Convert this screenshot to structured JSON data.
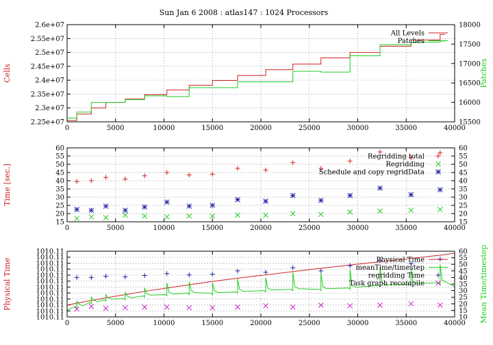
{
  "page": {
    "title": "Sun Jan 6 2008 : atlas147 : 1024 Processors",
    "colors": {
      "red": "#cc2020",
      "green": "#22cc22",
      "blue": "#2222aa",
      "magenta": "#cc22cc",
      "grid": "#a8a8a8",
      "frame": "#000000"
    }
  },
  "chart_data": [
    {
      "id": "cells-patches",
      "type": "line",
      "xlim": [
        0,
        40000
      ],
      "x_ticks": [
        0,
        5000,
        10000,
        15000,
        20000,
        25000,
        30000,
        35000,
        40000
      ],
      "ylabel": "Cells",
      "ylabel_color": "red",
      "ylim": [
        22500000,
        26000000
      ],
      "y_ticks": [
        22500000,
        23000000,
        23500000,
        24000000,
        24500000,
        25000000,
        25500000,
        26000000
      ],
      "y_tick_labels": [
        "2.25e+07",
        "2.3e+07",
        "2.35e+07",
        "2.4e+07",
        "2.45e+07",
        "2.5e+07",
        "2.55e+07",
        "2.6e+07"
      ],
      "y2label": "Patches",
      "y2label_color": "green",
      "y2lim": [
        15500,
        18000
      ],
      "y2_ticks": [
        15500,
        16000,
        16500,
        17000,
        17500,
        18000
      ],
      "legend_position": "top-right",
      "series": [
        {
          "name": "All Levels",
          "axis": "y",
          "color": "red",
          "style": "step",
          "x": [
            0,
            1000,
            2500,
            4000,
            6000,
            8000,
            10300,
            12600,
            15000,
            17600,
            20500,
            23300,
            26200,
            29200,
            32300,
            35500,
            38500
          ],
          "y": [
            22550000,
            22780000,
            23000000,
            23200000,
            23320000,
            23480000,
            23650000,
            23820000,
            23990000,
            24170000,
            24380000,
            24580000,
            24800000,
            25000000,
            25220000,
            25450000,
            25650000
          ]
        },
        {
          "name": "Patches",
          "axis": "y2",
          "color": "green",
          "style": "step",
          "x": [
            0,
            1000,
            2500,
            4000,
            6000,
            8000,
            10300,
            12600,
            15000,
            17600,
            20500,
            23300,
            26200,
            29200,
            32300,
            35500,
            38500
          ],
          "y": [
            15600,
            15750,
            16000,
            16000,
            16070,
            16170,
            16150,
            16380,
            16380,
            16530,
            16530,
            16800,
            16780,
            17200,
            17480,
            17550,
            17580
          ]
        }
      ]
    },
    {
      "id": "regridding-time",
      "type": "scatter",
      "xlim": [
        0,
        40000
      ],
      "x_ticks": [
        0,
        5000,
        10000,
        15000,
        20000,
        25000,
        30000,
        35000,
        40000
      ],
      "ylabel": "Time [sec.]",
      "ylabel_color": "red",
      "ylim": [
        15,
        60
      ],
      "y_ticks": [
        15,
        20,
        25,
        30,
        35,
        40,
        45,
        50,
        55,
        60
      ],
      "y2lim": [
        15,
        60
      ],
      "y2_ticks": [
        15,
        20,
        25,
        30,
        35,
        40,
        45,
        50,
        55,
        60
      ],
      "legend_position": "top-right",
      "series": [
        {
          "name": "Regridding total",
          "color": "red",
          "marker": "plus",
          "x": [
            1000,
            2500,
            4000,
            6000,
            8000,
            10300,
            12600,
            15000,
            17600,
            20500,
            23300,
            26200,
            29200,
            32300,
            35500,
            38500
          ],
          "y": [
            39.5,
            40,
            42,
            41,
            43,
            45,
            43.5,
            44,
            47.5,
            46.5,
            51,
            47.5,
            52,
            57.5,
            54,
            57
          ]
        },
        {
          "name": "Regridding",
          "color": "green",
          "marker": "cross",
          "x": [
            1000,
            2500,
            4000,
            6000,
            8000,
            10300,
            12600,
            15000,
            17600,
            20500,
            23300,
            26200,
            29200,
            32300,
            35500,
            38500
          ],
          "y": [
            17,
            18,
            17.5,
            19,
            18.5,
            18,
            18.5,
            18.5,
            19,
            19,
            20,
            19.5,
            21,
            21.5,
            22,
            22.5
          ]
        },
        {
          "name": "Schedule and copy regridData",
          "color": "blue",
          "marker": "star",
          "x": [
            1000,
            2500,
            4000,
            6000,
            8000,
            10300,
            12600,
            15000,
            17600,
            20500,
            23300,
            26200,
            29200,
            32300,
            35500,
            38500
          ],
          "y": [
            22.5,
            22,
            24.5,
            22,
            24,
            27,
            24.5,
            25,
            28.5,
            27.5,
            31,
            28,
            31,
            35.5,
            31.5,
            34.5
          ]
        }
      ]
    },
    {
      "id": "physical-time",
      "type": "line",
      "xlim": [
        0,
        40000
      ],
      "x_ticks": [
        0,
        5000,
        10000,
        15000,
        20000,
        25000,
        30000,
        35000,
        40000
      ],
      "ylabel": "Physical Time",
      "ylabel_color": "red",
      "y_tick_labels": [
        "1010.11",
        "1010.11",
        "1010.11",
        "1010.11",
        "1010.11",
        "1010.11",
        "1010.11",
        "1010.11",
        "1010.11",
        "1010.11",
        "1010.11",
        "1010.11"
      ],
      "y2label": "Mean Time/timestep",
      "y2label_color": "green",
      "y2lim": [
        10,
        60
      ],
      "y2_ticks": [
        10,
        15,
        20,
        25,
        30,
        35,
        40,
        45,
        50,
        55,
        60
      ],
      "legend_position": "top-right",
      "series": [
        {
          "name": "Physical Time",
          "axis": "y",
          "color": "red",
          "style": "line",
          "x": [
            0,
            1000,
            2500,
            4000,
            6000,
            8000,
            10300,
            12600,
            15000,
            17600,
            20500,
            23300,
            26200,
            29200,
            32300,
            35500,
            38500,
            40000
          ],
          "y": [
            19,
            20.5,
            22.5,
            24.5,
            27,
            29.5,
            32,
            34.5,
            37,
            39.5,
            42,
            44.5,
            47,
            49.5,
            52,
            54.5,
            57,
            58.5
          ]
        },
        {
          "name": "meanTime/timestep",
          "axis": "y2",
          "color": "green",
          "style": "line",
          "base": [
            [
              0,
              15
            ],
            [
              1000,
              17
            ],
            [
              2500,
              20
            ],
            [
              4000,
              22
            ],
            [
              6000,
              23
            ],
            [
              8000,
              25
            ],
            [
              10300,
              26
            ],
            [
              12600,
              27
            ],
            [
              15000,
              27
            ],
            [
              17600,
              28
            ],
            [
              20500,
              29
            ],
            [
              23300,
              30
            ],
            [
              26200,
              30
            ],
            [
              29200,
              31
            ],
            [
              32300,
              33
            ],
            [
              35500,
              34
            ],
            [
              38500,
              35
            ],
            [
              40000,
              33
            ]
          ],
          "spikes": [
            {
              "x": 1000,
              "y": 22
            },
            {
              "x": 2500,
              "y": 25
            },
            {
              "x": 4000,
              "y": 27
            },
            {
              "x": 6000,
              "y": 29
            },
            {
              "x": 8000,
              "y": 32
            },
            {
              "x": 10300,
              "y": 36
            },
            {
              "x": 12600,
              "y": 37
            },
            {
              "x": 15000,
              "y": 36
            },
            {
              "x": 17600,
              "y": 39
            },
            {
              "x": 20500,
              "y": 40
            },
            {
              "x": 23300,
              "y": 44
            },
            {
              "x": 26200,
              "y": 43
            },
            {
              "x": 29200,
              "y": 46
            },
            {
              "x": 32300,
              "y": 48
            },
            {
              "x": 35500,
              "y": 47
            },
            {
              "x": 38500,
              "y": 50
            }
          ]
        },
        {
          "name": "regridding Time",
          "axis": "y2",
          "color": "blue",
          "marker": "plus",
          "x": [
            1000,
            2500,
            4000,
            6000,
            8000,
            10300,
            12600,
            15000,
            17600,
            20500,
            23300,
            26200,
            29200,
            32300,
            35500,
            38500
          ],
          "y": [
            40,
            40,
            41,
            40.5,
            41.5,
            43,
            42,
            42.5,
            45,
            44,
            47.5,
            45,
            49,
            53,
            50.5,
            54
          ]
        },
        {
          "name": "Task graph recompile",
          "axis": "y2",
          "color": "magenta",
          "marker": "cross",
          "x": [
            1000,
            2500,
            4000,
            6000,
            8000,
            10300,
            12600,
            15000,
            17600,
            20500,
            23300,
            26200,
            29200,
            32300,
            35500,
            38500
          ],
          "y": [
            16,
            18,
            16.5,
            17,
            17.5,
            17.5,
            17,
            17,
            17.5,
            18.5,
            17.5,
            19,
            18.5,
            19,
            20,
            19
          ]
        }
      ]
    }
  ]
}
